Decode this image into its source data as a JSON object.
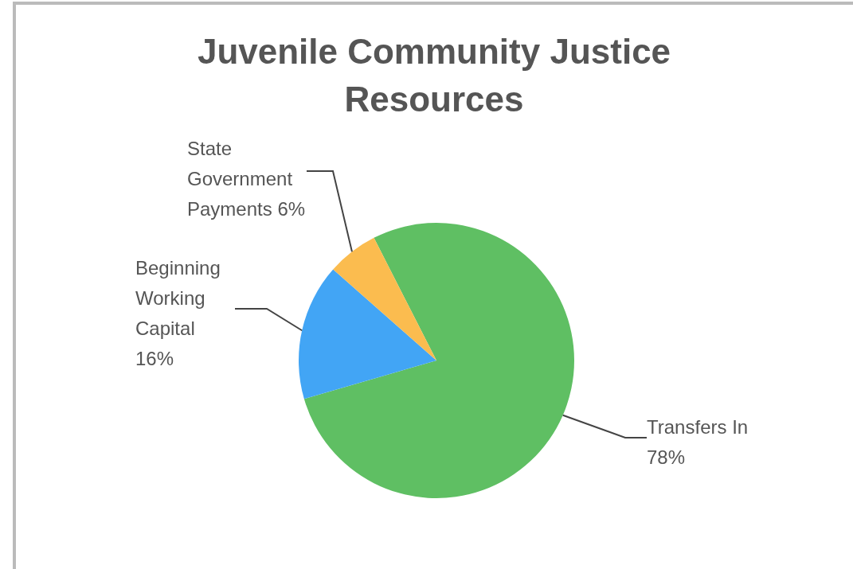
{
  "chart_data": {
    "type": "pie",
    "title": "Juvenile Community Justice Resources",
    "categories": [
      "Transfers In",
      "Beginning Working Capital",
      "State Government Payments"
    ],
    "values": [
      78,
      16,
      6
    ],
    "colors": [
      "#5fbf63",
      "#42a5f5",
      "#fbbc4f"
    ],
    "value_labels": [
      "78%",
      "16%",
      "6%"
    ]
  }
}
